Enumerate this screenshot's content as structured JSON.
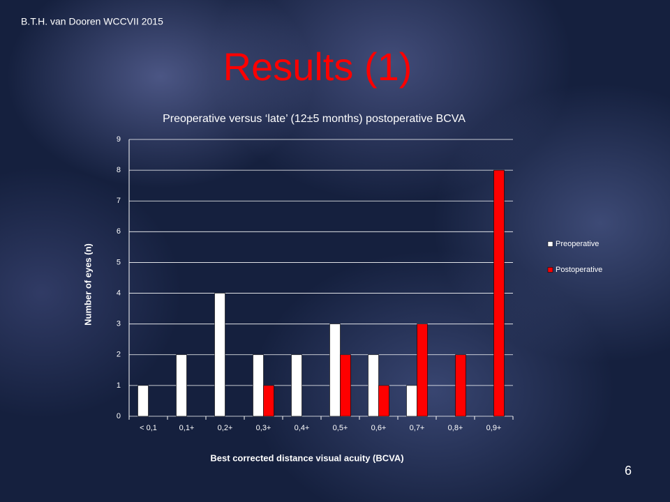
{
  "slide": {
    "header": "B.T.H. van Dooren WCCVII 2015",
    "title": "Results (1)",
    "page_number": "6"
  },
  "chart_data": {
    "type": "bar",
    "title": "Preoperative versus ‘late’ (12±5 months) postoperative BCVA",
    "x_label": "Best corrected distance visual acuity (BCVA)",
    "y_label": "Number of eyes (n)",
    "categories": [
      "< 0,1",
      "0,1+",
      "0,2+",
      "0,3+",
      "0,4+",
      "0,5+",
      "0,6+",
      "0,7+",
      "0,8+",
      "0,9+"
    ],
    "series": [
      {
        "name": "Preoperative",
        "color": "#ffffff",
        "values": [
          1,
          2,
          4,
          2,
          2,
          3,
          2,
          1,
          0,
          0
        ]
      },
      {
        "name": "Postoperative",
        "color": "#ff0000",
        "values": [
          0,
          0,
          0,
          1,
          0,
          2,
          1,
          3,
          2,
          8
        ]
      }
    ],
    "ylim": [
      0,
      9
    ],
    "yticks": [
      0,
      1,
      2,
      3,
      4,
      5,
      6,
      7,
      8,
      9
    ],
    "grid": true,
    "legend": "right"
  }
}
